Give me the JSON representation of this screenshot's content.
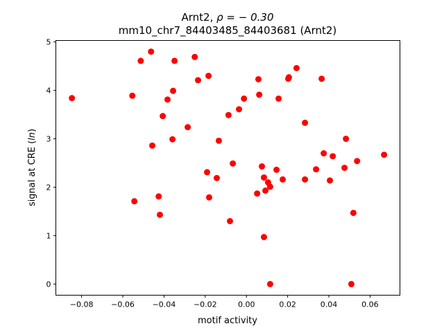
{
  "chart_data": {
    "type": "scatter",
    "title_line1_prefix": "Arnt2, ",
    "title_rho": "ρ = − 0.30",
    "title_line2": "mm10_chr7_84403485_84403681 (Arnt2)",
    "xlabel": "motif activity",
    "ylabel_prefix": "signal at CRE (",
    "ylabel_italic": "ln",
    "ylabel_suffix": ")",
    "xlim": [
      -0.0925,
      0.0745
    ],
    "ylim": [
      -0.23,
      5.03
    ],
    "xticks": [
      -0.08,
      -0.06,
      -0.04,
      -0.02,
      0.0,
      0.02,
      0.04,
      0.06
    ],
    "xtick_labels": [
      "−0.08",
      "−0.06",
      "−0.04",
      "−0.02",
      "0.00",
      "0.02",
      "0.04",
      "0.06"
    ],
    "yticks": [
      0,
      1,
      2,
      3,
      4,
      5
    ],
    "ytick_labels": [
      "0",
      "1",
      "2",
      "3",
      "4",
      "5"
    ],
    "grid": false,
    "marker_color": "#ff0000",
    "points": [
      [
        -0.0847,
        3.84
      ],
      [
        -0.0554,
        3.89
      ],
      [
        -0.0513,
        4.61
      ],
      [
        -0.0463,
        4.8
      ],
      [
        -0.0349,
        4.61
      ],
      [
        -0.0251,
        4.69
      ],
      [
        -0.0235,
        4.21
      ],
      [
        -0.0184,
        4.3
      ],
      [
        -0.0356,
        3.99
      ],
      [
        -0.0383,
        3.81
      ],
      [
        -0.0406,
        3.47
      ],
      [
        -0.0285,
        3.24
      ],
      [
        -0.0457,
        2.86
      ],
      [
        -0.0359,
        2.99
      ],
      [
        -0.0134,
        2.96
      ],
      [
        -0.0087,
        3.49
      ],
      [
        -0.0036,
        3.61
      ],
      [
        -0.0012,
        3.83
      ],
      [
        0.0058,
        4.23
      ],
      [
        0.0062,
        3.91
      ],
      [
        0.0156,
        3.83
      ],
      [
        0.0203,
        4.24
      ],
      [
        0.0206,
        4.27
      ],
      [
        0.0243,
        4.46
      ],
      [
        0.0365,
        4.24
      ],
      [
        0.0284,
        3.33
      ],
      [
        0.0483,
        3.0
      ],
      [
        0.0375,
        2.7
      ],
      [
        0.0419,
        2.64
      ],
      [
        0.0668,
        2.67
      ],
      [
        0.0537,
        2.54
      ],
      [
        0.0476,
        2.4
      ],
      [
        0.0338,
        2.37
      ],
      [
        0.0146,
        2.36
      ],
      [
        0.0075,
        2.43
      ],
      [
        0.0085,
        2.2
      ],
      [
        0.0176,
        2.16
      ],
      [
        0.0284,
        2.16
      ],
      [
        0.0405,
        2.14
      ],
      [
        0.0105,
        2.1
      ],
      [
        0.0115,
        2.01
      ],
      [
        0.0092,
        1.93
      ],
      [
        0.0052,
        1.87
      ],
      [
        -0.0066,
        2.49
      ],
      [
        -0.0191,
        2.31
      ],
      [
        -0.0144,
        2.19
      ],
      [
        -0.0181,
        1.79
      ],
      [
        -0.0426,
        1.81
      ],
      [
        -0.0544,
        1.71
      ],
      [
        -0.042,
        1.43
      ],
      [
        -0.008,
        1.3
      ],
      [
        0.0519,
        1.47
      ],
      [
        0.0085,
        0.97
      ],
      [
        0.0115,
        0.0
      ],
      [
        0.0509,
        0.0
      ]
    ]
  }
}
